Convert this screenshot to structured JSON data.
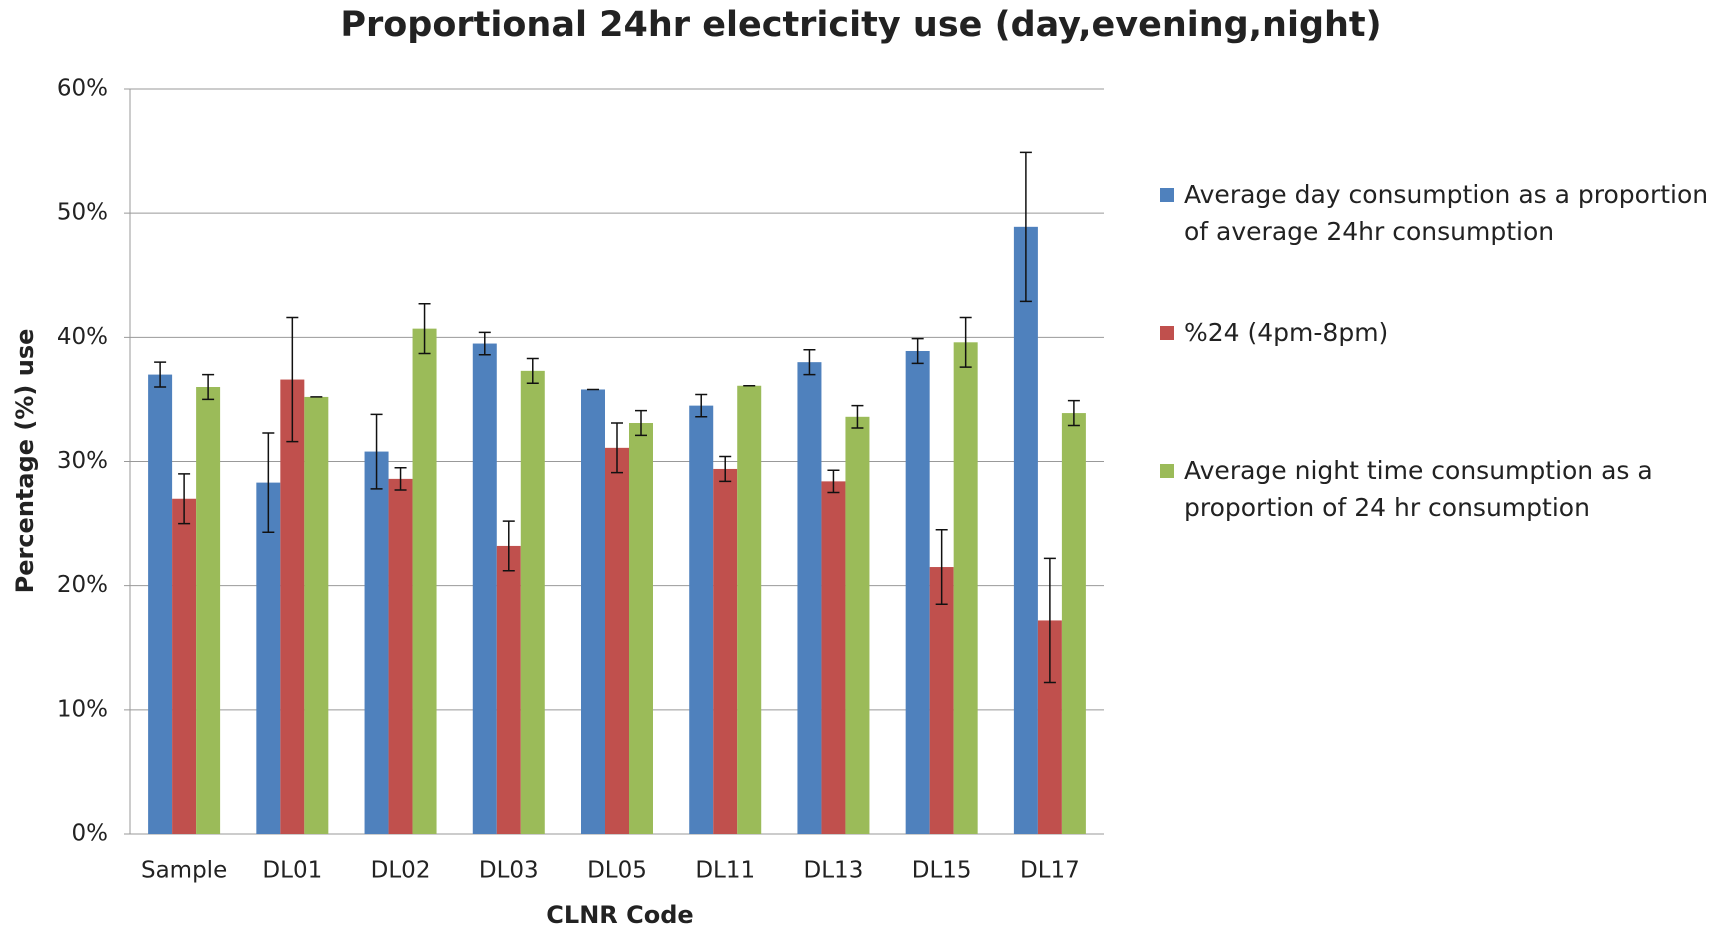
{
  "chart_data": {
    "type": "bar",
    "title": "Proportional 24hr electricity use (day,evening,night)",
    "x_label": "CLNR Code",
    "y_label": "Percentage (%) use",
    "categories": [
      "Sample",
      "DL01",
      "DL02",
      "DL03",
      "DL05",
      "DL11",
      "DL13",
      "DL15",
      "DL17"
    ],
    "series": [
      {
        "name": "Average day consumption as a proportion of average 24hr consumption",
        "color": "#4f81bd",
        "values": [
          37,
          28.3,
          30.8,
          39.5,
          35.8,
          34.5,
          38,
          38.9,
          48.9
        ],
        "errors": [
          1,
          4,
          3,
          0.9,
          0,
          0.9,
          1,
          1,
          6
        ]
      },
      {
        "name": "%24 (4pm-8pm)",
        "color": "#c0504d",
        "values": [
          27,
          36.6,
          28.6,
          23.2,
          31.1,
          29.4,
          28.4,
          21.5,
          17.2
        ],
        "errors": [
          2,
          5,
          0.9,
          2,
          2,
          1,
          0.9,
          3,
          5
        ]
      },
      {
        "name": "Average night time consumption as a proportion of 24 hr consumption",
        "color": "#9bbb59",
        "values": [
          36,
          35.2,
          40.7,
          37.3,
          33.1,
          36.1,
          33.6,
          39.6,
          33.9
        ],
        "errors": [
          1,
          0,
          2,
          1,
          1,
          0,
          0.9,
          2,
          1
        ]
      }
    ],
    "ylim": [
      0,
      60
    ],
    "yticks": [
      {
        "value": 0,
        "label": "0%"
      },
      {
        "value": 10,
        "label": "10%"
      },
      {
        "value": 20,
        "label": "20%"
      },
      {
        "value": 30,
        "label": "30%"
      },
      {
        "value": 40,
        "label": "40%"
      },
      {
        "value": 50,
        "label": "50%"
      },
      {
        "value": 60,
        "label": "60%"
      }
    ],
    "grid": true,
    "legend": "right"
  }
}
